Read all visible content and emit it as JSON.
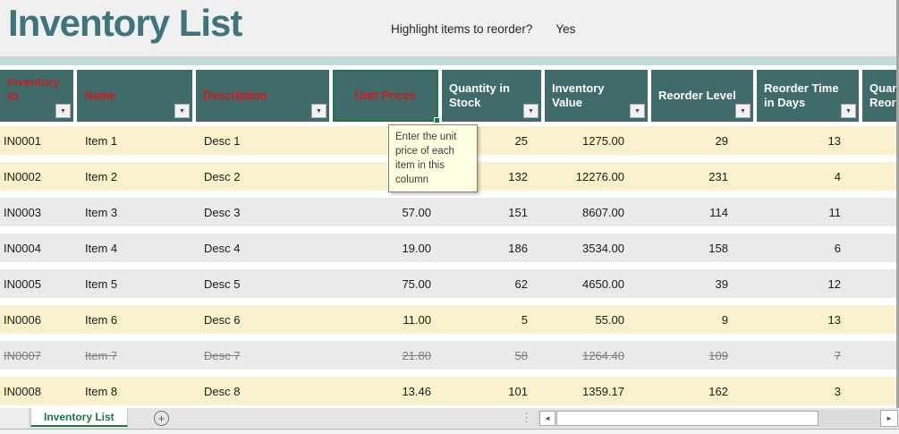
{
  "header": {
    "title": "Inventory List",
    "reorder_question": "Highlight items to reorder?",
    "reorder_answer": "Yes"
  },
  "table": {
    "columns": [
      {
        "label": "Inventory ID",
        "text_color": "red"
      },
      {
        "label": "Name",
        "text_color": "red"
      },
      {
        "label": "Description",
        "text_color": "red"
      },
      {
        "label": "Unit Prices",
        "text_color": "red",
        "selected": true
      },
      {
        "label": "Quantity in Stock",
        "text_color": "white"
      },
      {
        "label": "Inventory Value",
        "text_color": "white"
      },
      {
        "label": "Reorder Level",
        "text_color": "white"
      },
      {
        "label": "Reorder Time in Days",
        "text_color": "white"
      },
      {
        "label": "Quantity in Reorder",
        "text_color": "white",
        "clipped": true
      }
    ],
    "rows": [
      {
        "id": "IN0001",
        "name": "Item 1",
        "desc": "Desc 1",
        "price": "",
        "qty": "25",
        "value": "1275.00",
        "level": "29",
        "time": "13",
        "extra": "",
        "highlighted": true,
        "struck": false
      },
      {
        "id": "IN0002",
        "name": "Item 2",
        "desc": "Desc 2",
        "price": "",
        "qty": "132",
        "value": "12276.00",
        "level": "231",
        "time": "4",
        "extra": "",
        "highlighted": true,
        "struck": false
      },
      {
        "id": "IN0003",
        "name": "Item 3",
        "desc": "Desc 3",
        "price": "57.00",
        "qty": "151",
        "value": "8607.00",
        "level": "114",
        "time": "11",
        "extra": "",
        "highlighted": false,
        "struck": false
      },
      {
        "id": "IN0004",
        "name": "Item 4",
        "desc": "Desc 4",
        "price": "19.00",
        "qty": "186",
        "value": "3534.00",
        "level": "158",
        "time": "6",
        "extra": "",
        "highlighted": false,
        "struck": false
      },
      {
        "id": "IN0005",
        "name": "Item 5",
        "desc": "Desc 5",
        "price": "75.00",
        "qty": "62",
        "value": "4650.00",
        "level": "39",
        "time": "12",
        "extra": "",
        "highlighted": false,
        "struck": false
      },
      {
        "id": "IN0006",
        "name": "Item 6",
        "desc": "Desc 6",
        "price": "11.00",
        "qty": "5",
        "value": "55.00",
        "level": "9",
        "time": "13",
        "extra": "",
        "highlighted": true,
        "struck": false
      },
      {
        "id": "IN0007",
        "name": "Item 7",
        "desc": "Desc 7",
        "price": "21.80",
        "qty": "58",
        "value": "1264.40",
        "level": "109",
        "time": "7",
        "extra": "",
        "highlighted": false,
        "struck": true
      },
      {
        "id": "IN0008",
        "name": "Item 8",
        "desc": "Desc 8",
        "price": "13.46",
        "qty": "101",
        "value": "1359.17",
        "level": "162",
        "time": "3",
        "extra": "",
        "highlighted": true,
        "struck": false
      }
    ]
  },
  "tooltip": {
    "text": "Enter the unit price of each item in this column"
  },
  "sheet_bar": {
    "active_tab": "Inventory List"
  },
  "icons": {
    "filter_dropdown": "▼",
    "add_sheet": "+",
    "scroll_left": "◄",
    "scroll_right": "►",
    "drag_dots": "⋮"
  },
  "colors": {
    "title_teal": "#3E747C",
    "divider_teal": "#C3DBDB",
    "header_bg": "#3F6B6B",
    "header_red_text": "#C81E1E",
    "header_white_text": "#FFFFFF",
    "highlight_yellow_row": "#FBF1CC",
    "gray_row": "#EAEAEA",
    "struck_text_gray": "#7F7F7F",
    "selection_green": "#217346",
    "tab_green": "#217346",
    "tooltip_bg": "#FFFFE1"
  }
}
